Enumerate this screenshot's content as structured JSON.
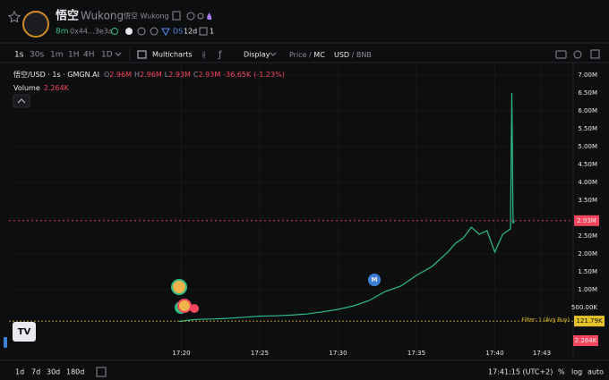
{
  "header": {
    "title": "悟空",
    "name": "Wukong",
    "subtitle": "悟空 Wukong",
    "age": "8m",
    "address": "0x44...3e3a",
    "ds": "DS",
    "ds_age": "12d",
    "count": "1"
  },
  "toolbar": {
    "intervals": [
      "1s",
      "30s",
      "1m",
      "1H",
      "4H",
      "1D"
    ],
    "multicharts": "Multicharts",
    "display": "Display",
    "price": "Price",
    "mc": "MC",
    "usd": "USD",
    "bnb": "BNB"
  },
  "legend": {
    "symbol": "悟空/USD · 1s · GMGN.AI",
    "o": "O",
    "o_value": "2.96M",
    "h": "H",
    "h_value": "2.96M",
    "l": "L",
    "l_value": "2.93M",
    "c": "C",
    "c_value": "2.93M",
    "change": "-36.65K",
    "change_pct": "(-1.23%)",
    "volume": "Volume",
    "volume_value": "2.264K"
  },
  "markers": {
    "migration": "M"
  },
  "chart_data": {
    "type": "line",
    "color": "#2ebd85",
    "grid": true,
    "x": [
      "17:19:50",
      "17:20:30",
      "17:21",
      "17:22",
      "17:23",
      "17:24",
      "17:25",
      "17:26",
      "17:27",
      "17:28",
      "17:29",
      "17:30",
      "17:31",
      "17:32",
      "17:33",
      "17:34",
      "17:35",
      "17:36",
      "17:37",
      "17:37:30",
      "17:38",
      "17:38:30",
      "17:39",
      "17:39:30",
      "17:40",
      "17:40:30",
      "17:41",
      "17:41:05",
      "17:41:10",
      "17:41:15"
    ],
    "values": [
      110000,
      150000,
      170000,
      180000,
      200000,
      230000,
      260000,
      270000,
      290000,
      320000,
      380000,
      450000,
      550000,
      700000,
      950000,
      1100000,
      1400000,
      1650000,
      2050000,
      2300000,
      2450000,
      2750000,
      2550000,
      2650000,
      2050000,
      2550000,
      2700000,
      6500000,
      2850000,
      2930000
    ],
    "xlim": [
      "17:09",
      "17:45"
    ],
    "xticks": [
      "17:20",
      "17:25",
      "17:30",
      "17:35",
      "17:40",
      "17:43"
    ],
    "ylim": [
      -900000,
      7300000
    ],
    "yticks": [
      {
        "value": 500000,
        "label": "500.00K"
      },
      {
        "value": 1000000,
        "label": "1.00M"
      },
      {
        "value": 1500000,
        "label": "1.50M"
      },
      {
        "value": 2000000,
        "label": "2.00M"
      },
      {
        "value": 2500000,
        "label": "2.50M"
      },
      {
        "value": 3000000,
        "label": "3.00M"
      },
      {
        "value": 3500000,
        "label": "3.50M"
      },
      {
        "value": 4000000,
        "label": "4.00M"
      },
      {
        "value": 4500000,
        "label": "4.50M"
      },
      {
        "value": 5000000,
        "label": "5.00M"
      },
      {
        "value": 5500000,
        "label": "5.50M"
      },
      {
        "value": 6000000,
        "label": "6.00M"
      },
      {
        "value": 6500000,
        "label": "6.50M"
      },
      {
        "value": 7000000,
        "label": "7.00M"
      }
    ],
    "last_price": {
      "value": 2930000,
      "label": "2.93M"
    },
    "avg_buy": {
      "value": 121790,
      "label": "121.79K"
    },
    "filter_label": "Filter: 1 (Avg Buy)"
  },
  "footer": {
    "ranges": [
      "1d",
      "7d",
      "30d",
      "180d"
    ],
    "time": "17:41:15 (UTC+2)",
    "percent": "%",
    "log": "log",
    "auto": "auto"
  }
}
